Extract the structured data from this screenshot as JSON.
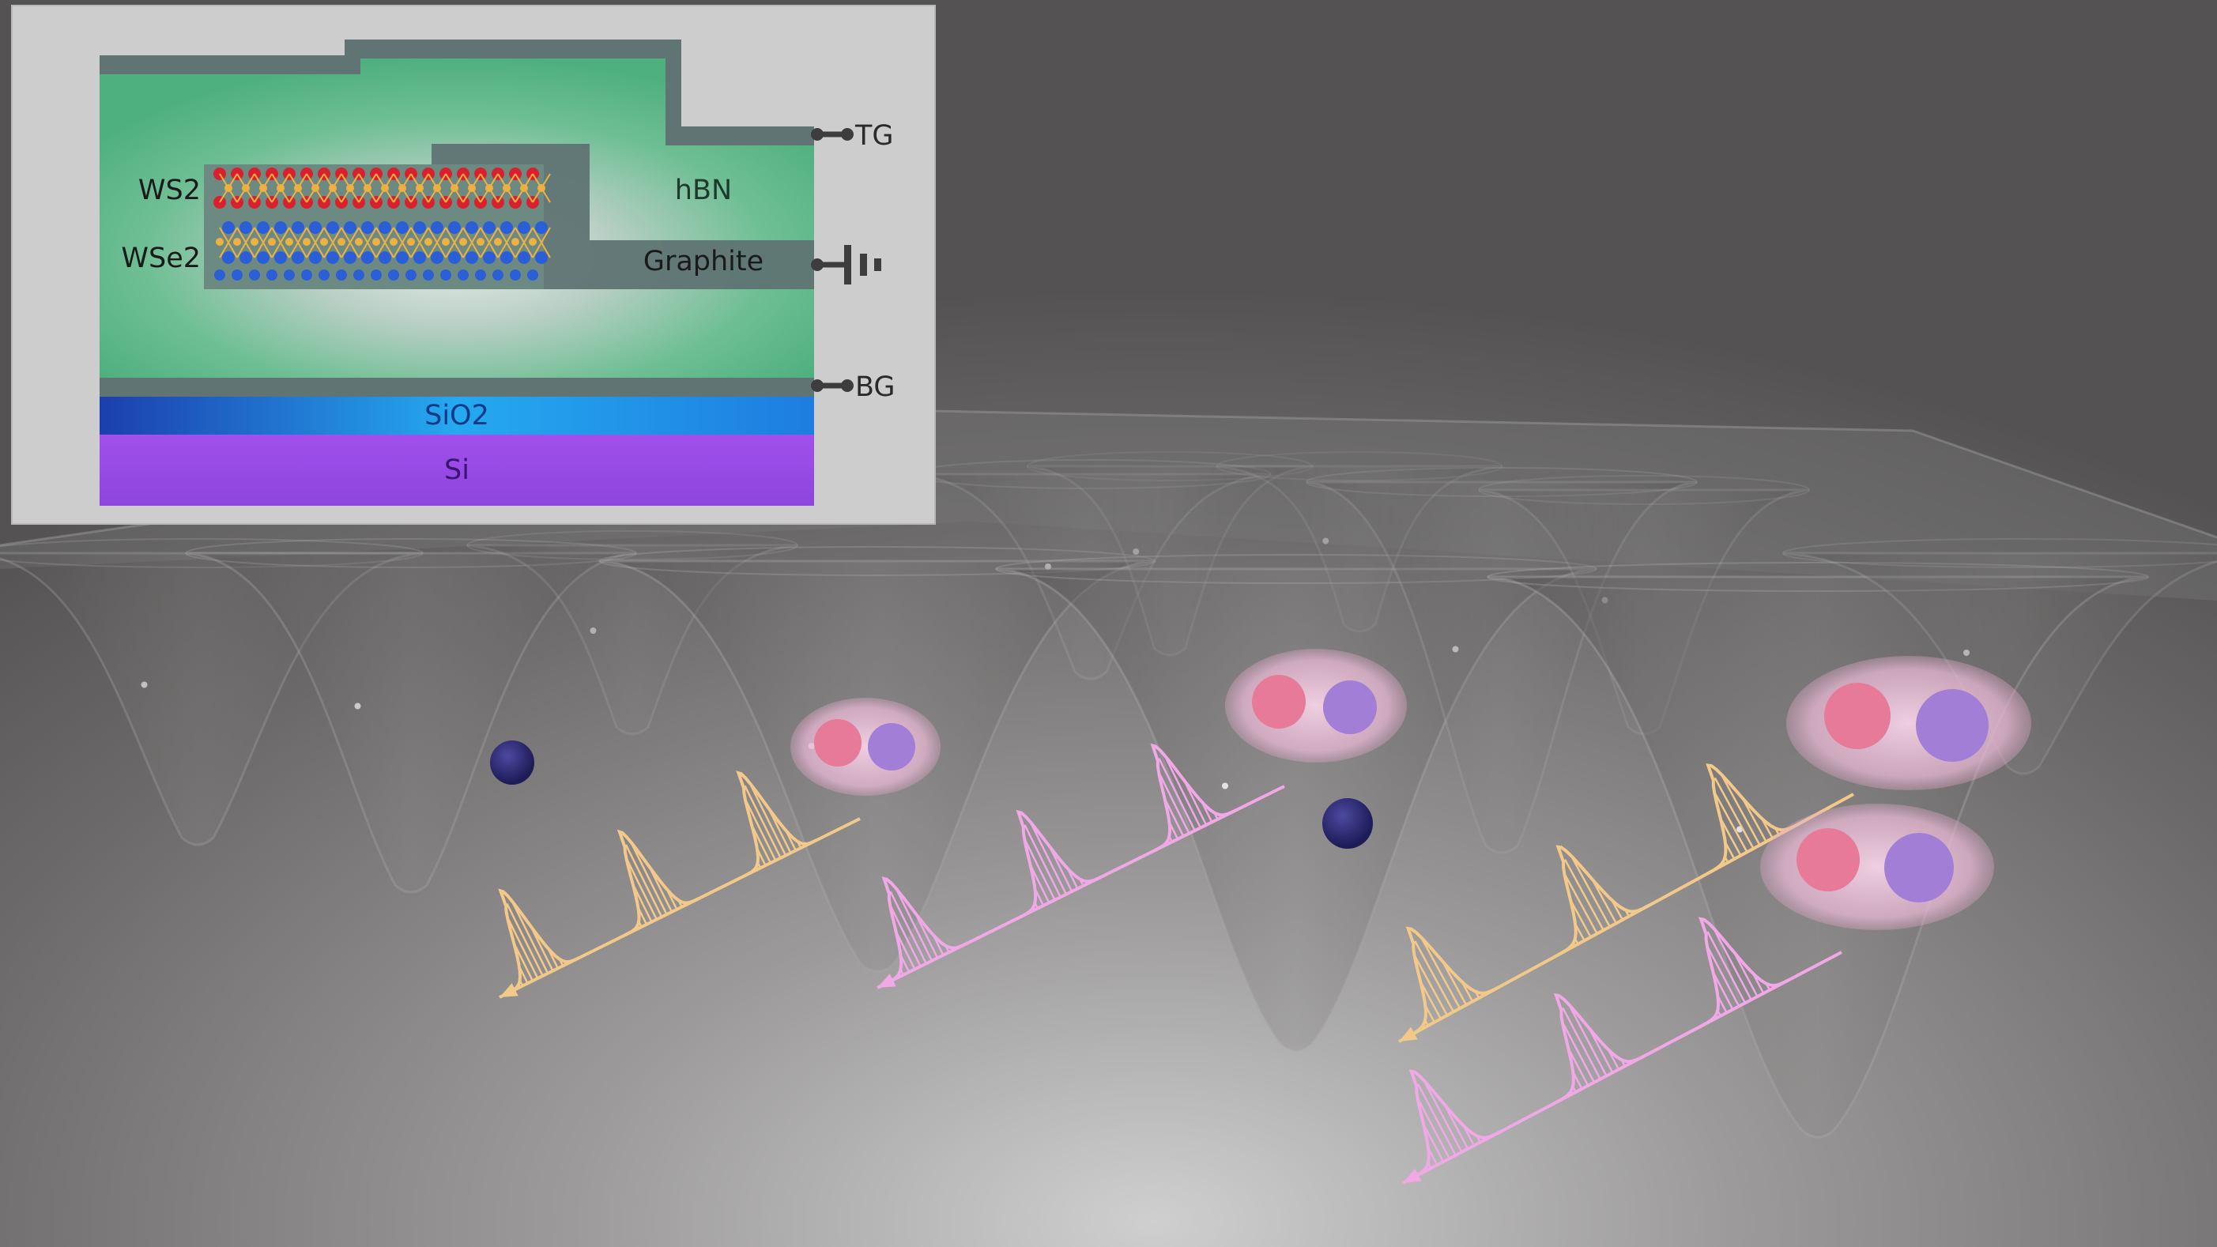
{
  "inset": {
    "labels": {
      "ws2": "WS2",
      "wse2": "WSe2",
      "hbn": "hBN",
      "graphite": "Graphite",
      "sio2": "SiO2",
      "si": "Si",
      "tg": "TG",
      "bg": "BG"
    }
  },
  "colors": {
    "background": "#575555",
    "inset_bg": "#cdcdcd",
    "hbn_green": "#5fb98a",
    "graphite": "#5f7473",
    "sio2": "#1f8be8",
    "si": "#9a4fe6",
    "ws2_atoms": "#d8202e",
    "wse2_atoms": "#2a5fd8",
    "bonds": "#f0b040",
    "wave_orange": "#f3c98a",
    "wave_pink": "#f0a8e6",
    "electron": "#2a2870",
    "exciton_red": "#e67a98",
    "exciton_purple": "#a27ed6"
  }
}
